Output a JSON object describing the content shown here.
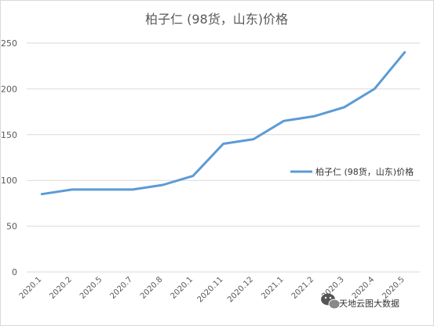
{
  "chart_data": {
    "type": "line",
    "title": "柏子仁 (98货，山东)价格",
    "xlabel": "",
    "ylabel": "",
    "categories": [
      "2020.1",
      "2020.2",
      "2020.5",
      "2020.7",
      "2020.8",
      "2020.1",
      "2020.11",
      "2020.12",
      "2021.1",
      "2021.2",
      "2020.3",
      "2020.4",
      "2020.5"
    ],
    "series": [
      {
        "name": "柏子仁 (98货，山东)价格",
        "values": [
          85,
          90,
          90,
          90,
          95,
          105,
          140,
          145,
          165,
          170,
          180,
          200,
          240
        ],
        "color": "#5b9bd5"
      }
    ],
    "ylim": [
      0,
      250
    ],
    "yticks": [
      0,
      50,
      100,
      150,
      200,
      250
    ],
    "grid": true,
    "legend": "right"
  },
  "watermark": {
    "text": "天地云图大数据",
    "icon": "wechat-icon"
  }
}
